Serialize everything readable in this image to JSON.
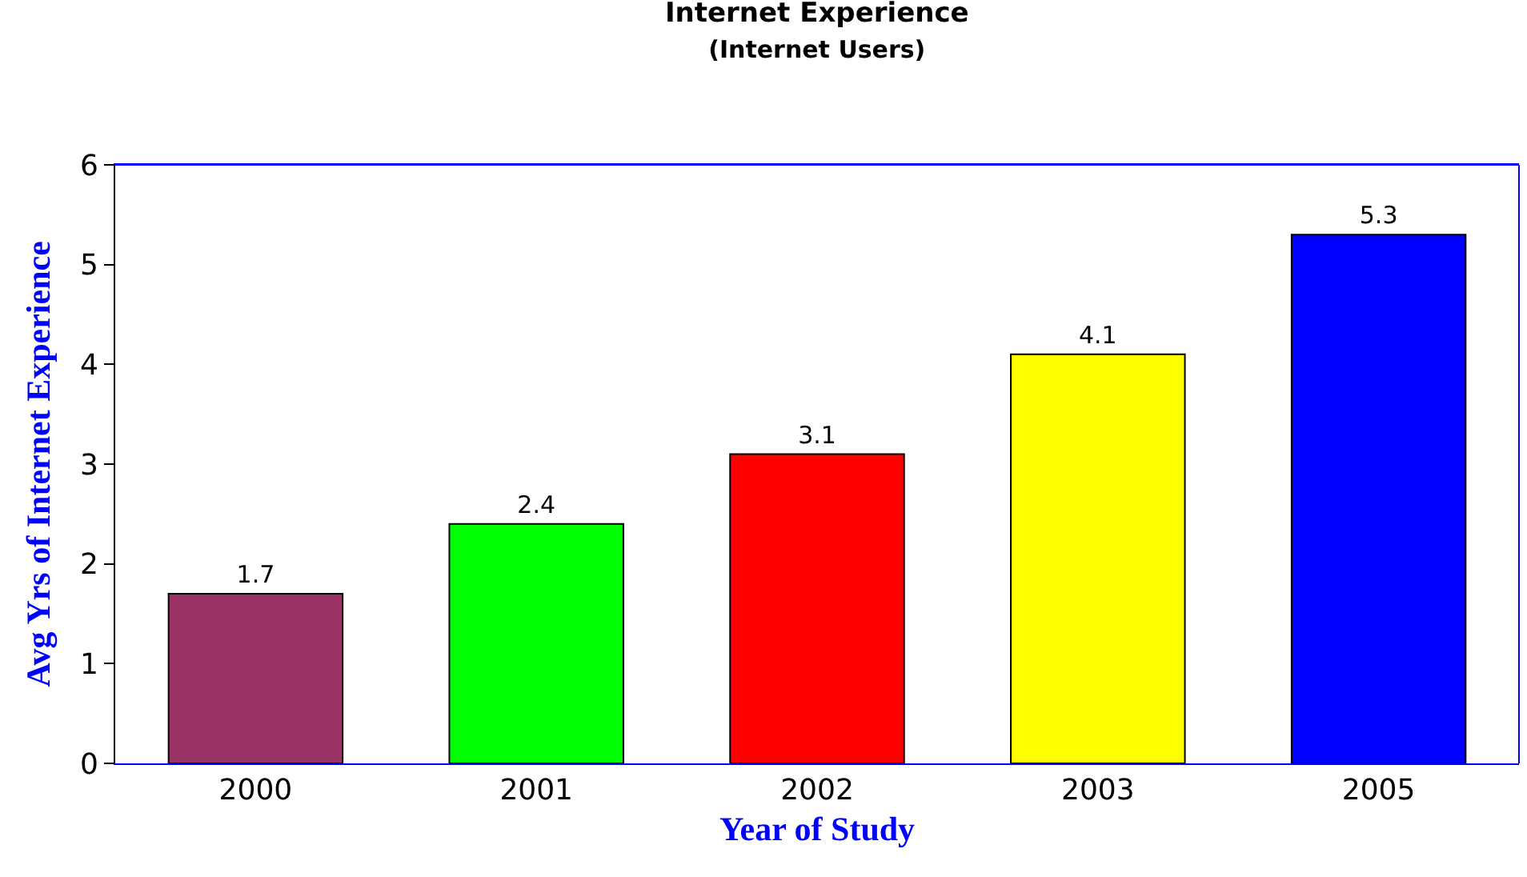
{
  "chart_data": {
    "type": "bar",
    "title": "Internet Experience",
    "subtitle": "(Internet Users)",
    "xlabel": "Year of Study",
    "ylabel": "Avg Yrs of Internet Experience",
    "categories": [
      "2000",
      "2001",
      "2002",
      "2003",
      "2005"
    ],
    "values": [
      1.7,
      2.4,
      3.1,
      4.1,
      5.3
    ],
    "colors": [
      "#993366",
      "#00ff00",
      "#ff0000",
      "#ffff00",
      "#0000ff"
    ],
    "ylim": [
      0,
      6
    ],
    "yticks": [
      0,
      1,
      2,
      3,
      4,
      5,
      6
    ],
    "grid": false,
    "legend": false,
    "data_labels": true
  }
}
